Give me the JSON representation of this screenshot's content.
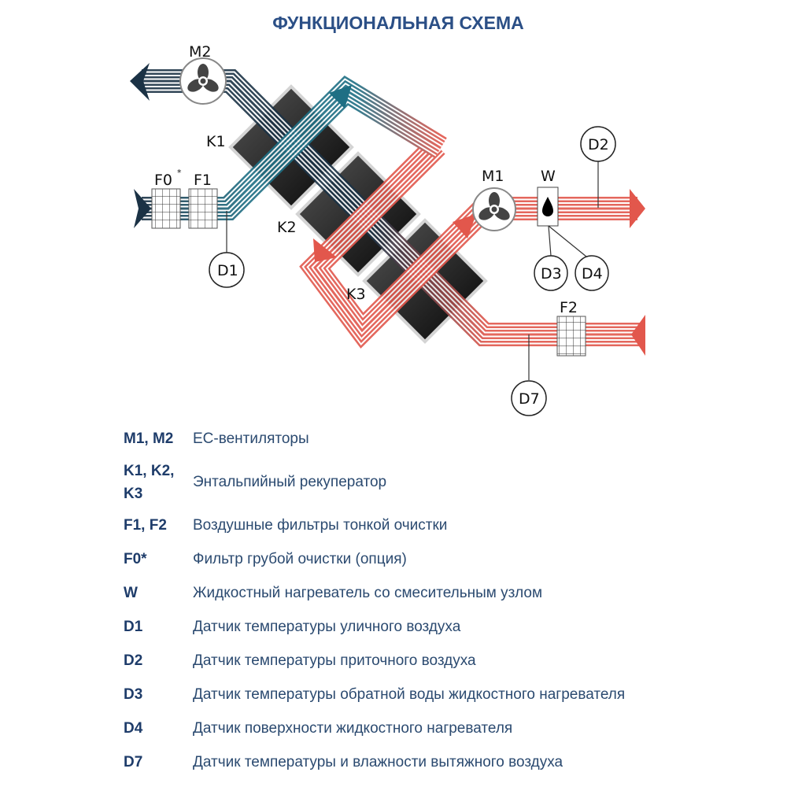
{
  "title": "ФУНКЦИОНАЛЬНАЯ СХЕМА",
  "diagram": {
    "labels": {
      "m2": "M2",
      "m1": "M1",
      "k1": "K1",
      "k2": "K2",
      "k3": "K3",
      "f0": "F0",
      "f0_star": "*",
      "f1": "F1",
      "f2": "F2",
      "w": "W",
      "d1": "D1",
      "d2": "D2",
      "d3": "D3",
      "d4": "D4",
      "d7": "D7"
    },
    "colors": {
      "exhaust_dark": "#1b3245",
      "supply_teal": "#1f6f84",
      "warm_red": "#e2574c",
      "recuperator": "#1a1a1a"
    },
    "icons": [
      "fan-icon",
      "water-drop-icon",
      "filter-grid-icon",
      "arrow-icon"
    ]
  },
  "legend": [
    {
      "term": "M1, M2",
      "desc": "ЕС-вентиляторы"
    },
    {
      "term": "K1, K2, K3",
      "desc": "Энтальпийный рекуператор"
    },
    {
      "term": "F1, F2",
      "desc": "Воздушные фильтры тонкой очистки"
    },
    {
      "term": "F0*",
      "desc": "Фильтр грубой очистки (опция)"
    },
    {
      "term": "W",
      "desc": "Жидкостный нагреватель со смесительным узлом"
    },
    {
      "term": "D1",
      "desc": "Датчик температуры уличного воздуха"
    },
    {
      "term": "D2",
      "desc": "Датчик температуры приточного воздуха"
    },
    {
      "term": "D3",
      "desc": "Датчик температуры обратной воды жидкостного нагревателя"
    },
    {
      "term": "D4",
      "desc": "Датчик поверхности жидкостного нагревателя"
    },
    {
      "term": "D7",
      "desc": "Датчик температуры и влажности вытяжного воздуха"
    }
  ]
}
